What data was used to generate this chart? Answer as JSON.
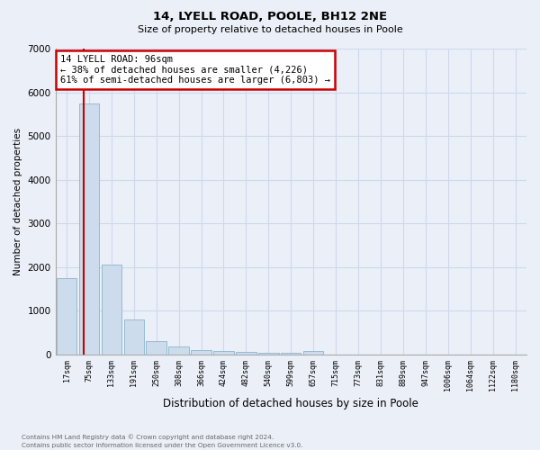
{
  "title1": "14, LYELL ROAD, POOLE, BH12 2NE",
  "title2": "Size of property relative to detached houses in Poole",
  "xlabel": "Distribution of detached houses by size in Poole",
  "ylabel": "Number of detached properties",
  "categories": [
    "17sqm",
    "75sqm",
    "133sqm",
    "191sqm",
    "250sqm",
    "308sqm",
    "366sqm",
    "424sqm",
    "482sqm",
    "540sqm",
    "599sqm",
    "657sqm",
    "715sqm",
    "773sqm",
    "831sqm",
    "889sqm",
    "947sqm",
    "1006sqm",
    "1064sqm",
    "1122sqm",
    "1180sqm"
  ],
  "values": [
    1750,
    5750,
    2050,
    800,
    300,
    175,
    100,
    75,
    50,
    40,
    30,
    75,
    5,
    0,
    0,
    0,
    0,
    0,
    0,
    0,
    0
  ],
  "bar_color": "#ccdcec",
  "bar_edge_color": "#8ab4cc",
  "bar_width": 0.9,
  "property_sqm": 96,
  "annotation_title": "14 LYELL ROAD: 96sqm",
  "annotation_line1": "← 38% of detached houses are smaller (4,226)",
  "annotation_line2": "61% of semi-detached houses are larger (6,803) →",
  "annotation_box_color": "white",
  "annotation_box_edge": "#cc0000",
  "red_line_color": "#cc0000",
  "ylim": [
    0,
    7000
  ],
  "yticks": [
    0,
    1000,
    2000,
    3000,
    4000,
    5000,
    6000,
    7000
  ],
  "grid_color": "#d0d8ec",
  "bg_color": "#eaeff8",
  "footnote1": "Contains HM Land Registry data © Crown copyright and database right 2024.",
  "footnote2": "Contains public sector information licensed under the Open Government Licence v3.0."
}
